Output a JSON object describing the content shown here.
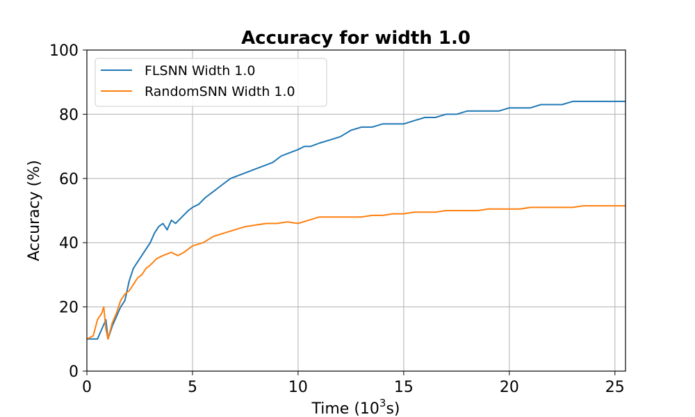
{
  "chart_data": {
    "type": "line",
    "title": "Accuracy for width 1.0",
    "xlabel": "Time (10",
    "xlabel_sup": "3",
    "xlabel_suffix": "s)",
    "ylabel": "Accuracy (%)",
    "xlim": [
      0,
      25.5
    ],
    "ylim": [
      0,
      100
    ],
    "xticks": [
      0,
      5,
      10,
      15,
      20,
      25
    ],
    "yticks": [
      0,
      20,
      40,
      60,
      80,
      100
    ],
    "grid": true,
    "legend_position": "top-left",
    "series": [
      {
        "name": "FLSNN Width 1.0",
        "color": "#1f77b4",
        "x": [
          0.0,
          0.3,
          0.5,
          0.7,
          0.9,
          1.0,
          1.2,
          1.4,
          1.6,
          1.8,
          2.0,
          2.2,
          2.4,
          2.6,
          2.8,
          3.0,
          3.2,
          3.4,
          3.6,
          3.8,
          4.0,
          4.2,
          4.5,
          4.8,
          5.0,
          5.3,
          5.6,
          6.0,
          6.4,
          6.8,
          7.2,
          7.6,
          8.0,
          8.4,
          8.8,
          9.2,
          9.6,
          10.0,
          10.3,
          10.6,
          11.0,
          11.5,
          12.0,
          12.5,
          13.0,
          13.5,
          14.0,
          14.5,
          15.0,
          15.5,
          16.0,
          16.5,
          17.0,
          17.5,
          18.0,
          18.5,
          19.0,
          19.5,
          20.0,
          20.5,
          21.0,
          21.5,
          22.0,
          22.5,
          23.0,
          23.5,
          24.0,
          24.5,
          25.0,
          25.5
        ],
        "values": [
          10,
          10,
          10,
          13,
          16,
          10,
          14,
          17,
          20,
          22,
          28,
          32,
          34,
          36,
          38,
          40,
          43,
          45,
          46,
          44,
          47,
          46,
          48,
          50,
          51,
          52,
          54,
          56,
          58,
          60,
          61,
          62,
          63,
          64,
          65,
          67,
          68,
          69,
          70,
          70,
          71,
          72,
          73,
          75,
          76,
          76,
          77,
          77,
          77,
          78,
          79,
          79,
          80,
          80,
          81,
          81,
          81,
          81,
          82,
          82,
          82,
          83,
          83,
          83,
          84,
          84,
          84,
          84,
          84,
          84
        ]
      },
      {
        "name": "RandomSNN Width 1.0",
        "color": "#ff7f0e",
        "x": [
          0.0,
          0.3,
          0.5,
          0.7,
          0.8,
          0.9,
          1.0,
          1.2,
          1.4,
          1.6,
          1.8,
          2.0,
          2.2,
          2.4,
          2.6,
          2.8,
          3.0,
          3.3,
          3.6,
          4.0,
          4.3,
          4.6,
          5.0,
          5.5,
          6.0,
          6.5,
          7.0,
          7.5,
          8.0,
          8.5,
          9.0,
          9.5,
          10.0,
          10.5,
          11.0,
          11.5,
          12.0,
          12.5,
          13.0,
          13.5,
          14.0,
          14.5,
          15.0,
          15.5,
          16.0,
          16.5,
          17.0,
          17.5,
          18.0,
          18.5,
          19.0,
          19.5,
          20.0,
          20.5,
          21.0,
          21.5,
          22.0,
          22.5,
          23.0,
          23.5,
          24.0,
          24.5,
          25.0,
          25.5
        ],
        "values": [
          10,
          11,
          16,
          18,
          20,
          13,
          10,
          15,
          18,
          22,
          24,
          25,
          27,
          29,
          30,
          32,
          33,
          35,
          36,
          37,
          36,
          37,
          39,
          40,
          42,
          43,
          44,
          45,
          45.5,
          46,
          46,
          46.5,
          46,
          47,
          48,
          48,
          48,
          48,
          48,
          48.5,
          48.5,
          49,
          49,
          49.5,
          49.5,
          49.5,
          50,
          50,
          50,
          50,
          50.5,
          50.5,
          50.5,
          50.5,
          51,
          51,
          51,
          51,
          51,
          51.5,
          51.5,
          51.5,
          51.5,
          51.5
        ]
      }
    ]
  }
}
